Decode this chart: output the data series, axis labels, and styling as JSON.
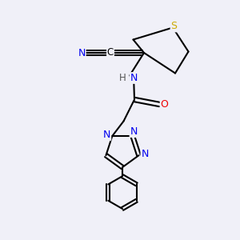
{
  "bg_color": "#f0f0f8",
  "atom_colors": {
    "C": "#000000",
    "N": "#0000ee",
    "O": "#ee0000",
    "S": "#ccaa00",
    "H": "#555555"
  },
  "figsize": [
    3.0,
    3.0
  ],
  "dpi": 100,
  "xlim": [
    0,
    10
  ],
  "ylim": [
    0,
    10
  ]
}
